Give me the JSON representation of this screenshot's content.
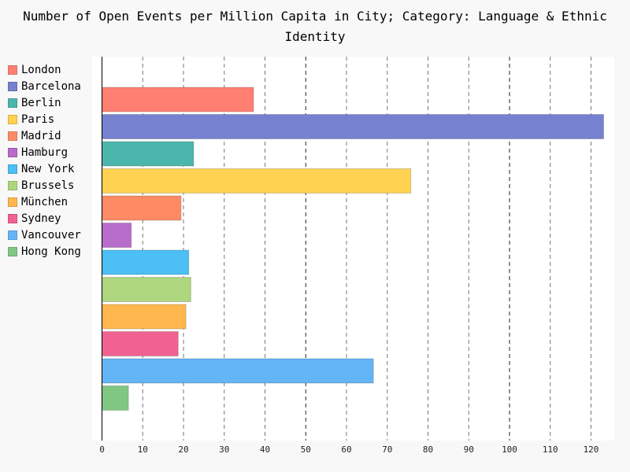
{
  "chart_data": {
    "type": "bar",
    "orientation": "horizontal",
    "title": "Number of Open Events per Million Capita in City; Category: Language & Ethnic Identity",
    "xlabel": "",
    "ylabel": "",
    "xlim": [
      0,
      125
    ],
    "x_ticks": [
      "0",
      "10",
      "20",
      "30",
      "40",
      "50",
      "60",
      "70",
      "80",
      "90",
      "100",
      "110",
      "120"
    ],
    "grid": "vertical dashed",
    "legend_position": "left",
    "categories": [
      "London",
      "Barcelona",
      "Berlin",
      "Paris",
      "Madrid",
      "Hamburg",
      "New York",
      "Brussels",
      "München",
      "Sydney",
      "Vancouver",
      "Hong Kong"
    ],
    "values": [
      37.2,
      123.1,
      22.5,
      75.8,
      19.4,
      7.2,
      21.3,
      21.8,
      20.6,
      18.7,
      66.6,
      6.5
    ],
    "colors": [
      "#ff7f73",
      "#7681cf",
      "#4db6ac",
      "#ffd351",
      "#ff8b65",
      "#b86cc9",
      "#4cbff4",
      "#aed67e",
      "#ffb74d",
      "#f06292",
      "#64b5f6",
      "#81c784"
    ]
  }
}
